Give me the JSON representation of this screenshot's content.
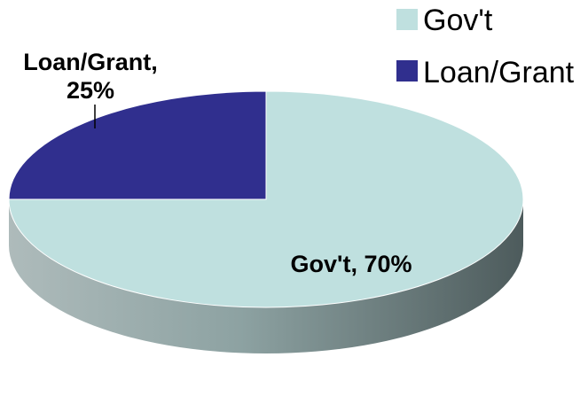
{
  "chart_data": {
    "type": "pie",
    "style": "3d",
    "title": "",
    "slices": [
      {
        "label": "Gov't",
        "value": 70,
        "color": "#bfe0df",
        "data_label": "Gov't, 70%"
      },
      {
        "label": "Loan/Grant",
        "value": 25,
        "color": "#302f8e",
        "data_label_line1": "Loan/Grant,",
        "data_label_line2": "25%"
      }
    ],
    "unit": "%",
    "legend": {
      "position": "top-right",
      "entries": [
        "Gov't",
        "Loan/Grant"
      ]
    }
  }
}
